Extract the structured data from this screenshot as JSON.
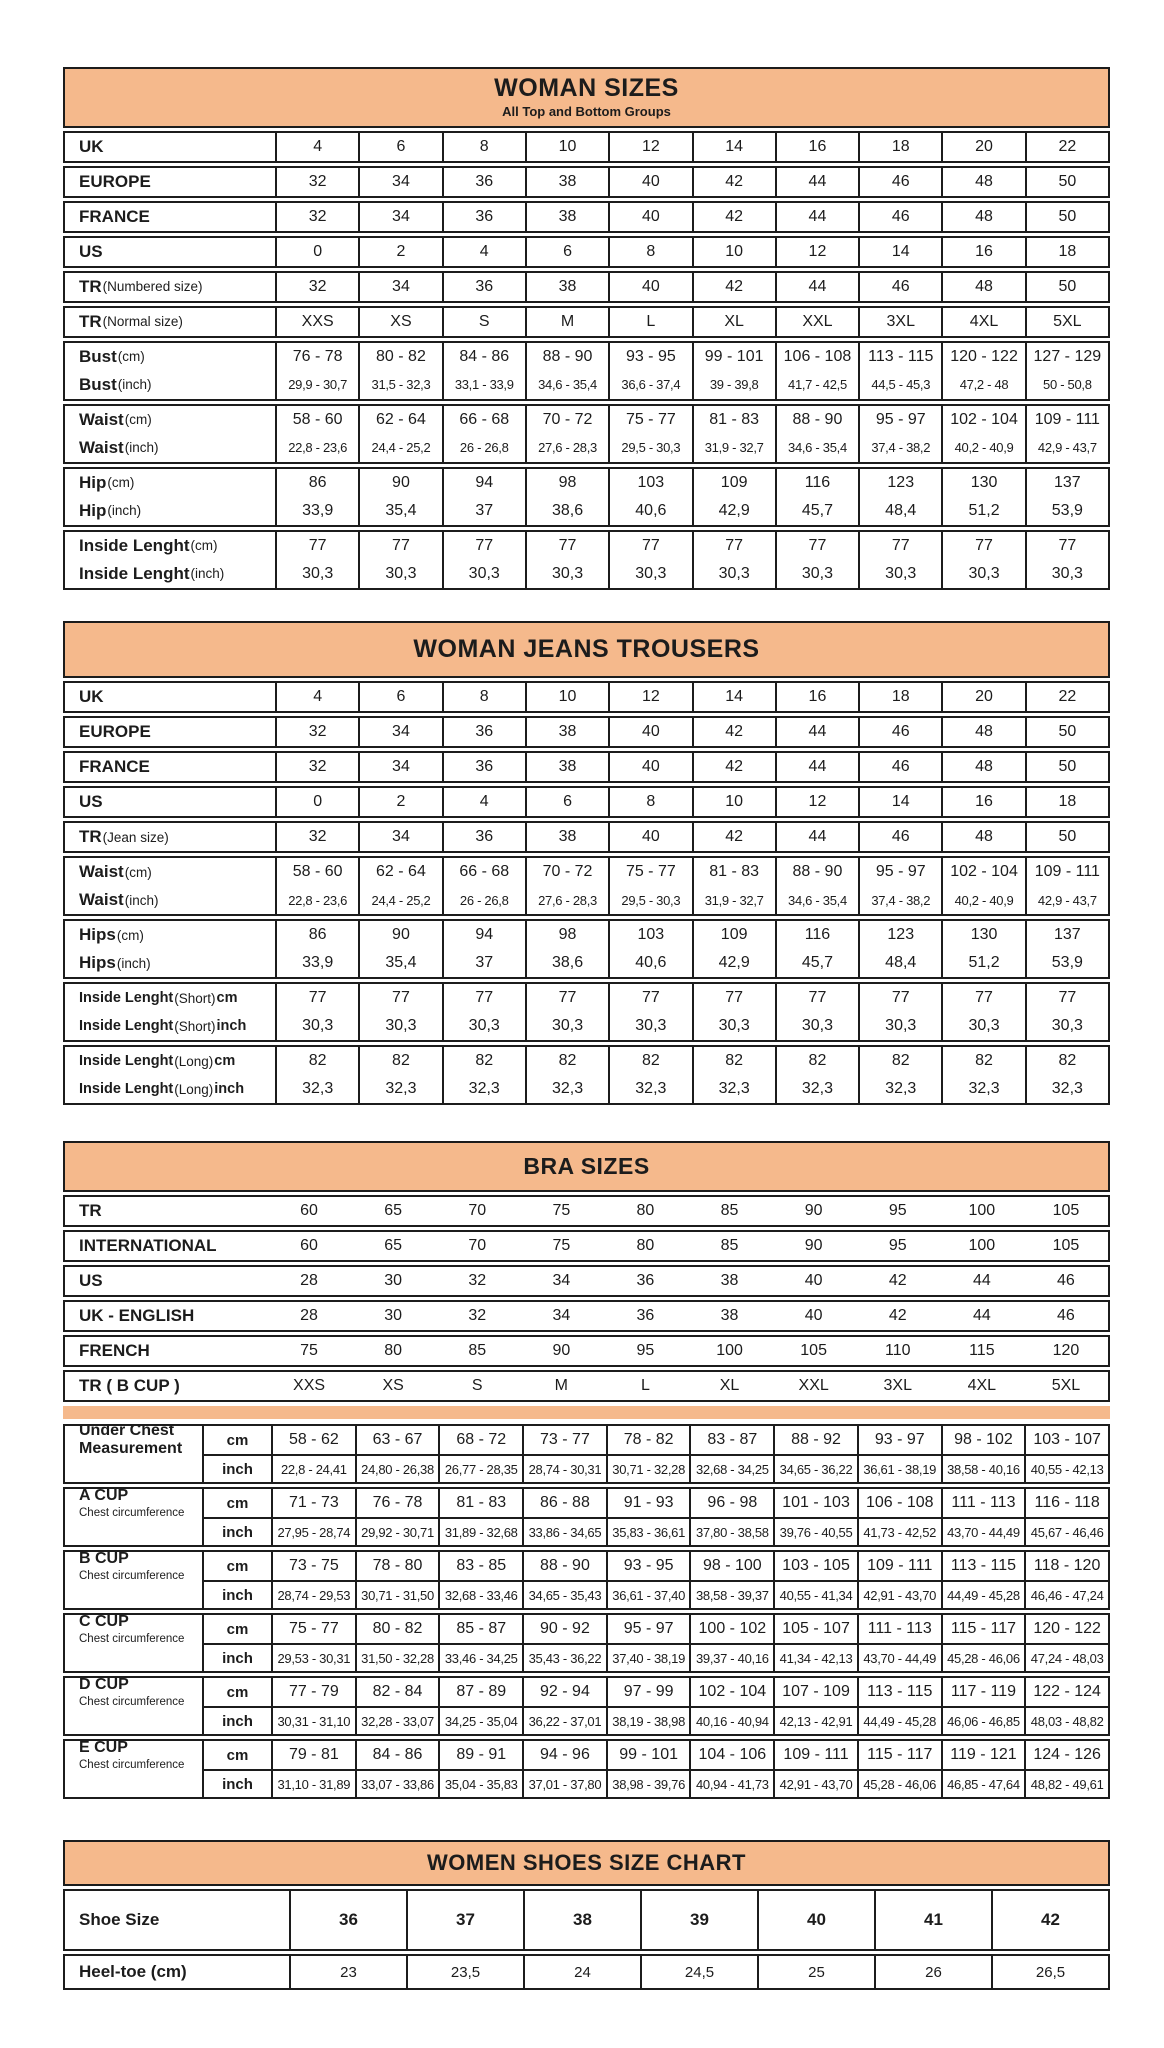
{
  "theme": {
    "header_bg": "#F5B98C",
    "border_color": "#1c1c1c",
    "text_color": "#1c1c1c"
  },
  "tables": [
    {
      "title": "WOMAN SIZES",
      "subtitle": "All Top and Bottom Groups",
      "groups": [
        {
          "rows": [
            {
              "label": "UK",
              "values": [
                "4",
                "6",
                "8",
                "10",
                "12",
                "14",
                "16",
                "18",
                "20",
                "22"
              ]
            }
          ]
        },
        {
          "rows": [
            {
              "label": "EUROPE",
              "values": [
                "32",
                "34",
                "36",
                "38",
                "40",
                "42",
                "44",
                "46",
                "48",
                "50"
              ]
            }
          ]
        },
        {
          "rows": [
            {
              "label": "FRANCE",
              "values": [
                "32",
                "34",
                "36",
                "38",
                "40",
                "42",
                "44",
                "46",
                "48",
                "50"
              ]
            }
          ]
        },
        {
          "rows": [
            {
              "label": "US",
              "values": [
                "0",
                "2",
                "4",
                "6",
                "8",
                "10",
                "12",
                "14",
                "16",
                "18"
              ]
            }
          ]
        },
        {
          "rows": [
            {
              "label": "TR (Numbered size)",
              "values": [
                "32",
                "34",
                "36",
                "38",
                "40",
                "42",
                "44",
                "46",
                "48",
                "50"
              ]
            }
          ]
        },
        {
          "rows": [
            {
              "label": "TR (Normal size)",
              "values": [
                "XXS",
                "XS",
                "S",
                "M",
                "L",
                "XL",
                "XXL",
                "3XL",
                "4XL",
                "5XL"
              ]
            }
          ]
        },
        {
          "rows": [
            {
              "label": "Bust (cm)",
              "values": [
                "76 - 78",
                "80 - 82",
                "84 - 86",
                "88 - 90",
                "93 - 95",
                "99 - 101",
                "106 - 108",
                "113 - 115",
                "120 - 122",
                "127 - 129"
              ]
            },
            {
              "label": "Bust (inch)",
              "small": true,
              "values": [
                "29,9 - 30,7",
                "31,5 - 32,3",
                "33,1 - 33,9",
                "34,6 - 35,4",
                "36,6 - 37,4",
                "39 - 39,8",
                "41,7 - 42,5",
                "44,5 - 45,3",
                "47,2 - 48",
                "50 - 50,8"
              ]
            }
          ]
        },
        {
          "rows": [
            {
              "label": "Waist (cm)",
              "values": [
                "58 - 60",
                "62 - 64",
                "66 - 68",
                "70 - 72",
                "75 - 77",
                "81 - 83",
                "88 - 90",
                "95 - 97",
                "102 - 104",
                "109 - 111"
              ]
            },
            {
              "label": "Waist (inch)",
              "small": true,
              "values": [
                "22,8 - 23,6",
                "24,4 - 25,2",
                "26 - 26,8",
                "27,6 - 28,3",
                "29,5 - 30,3",
                "31,9 - 32,7",
                "34,6 - 35,4",
                "37,4 - 38,2",
                "40,2 - 40,9",
                "42,9 - 43,7"
              ]
            }
          ]
        },
        {
          "rows": [
            {
              "label": "Hip (cm)",
              "values": [
                "86",
                "90",
                "94",
                "98",
                "103",
                "109",
                "116",
                "123",
                "130",
                "137"
              ]
            },
            {
              "label": "Hip (inch)",
              "values": [
                "33,9",
                "35,4",
                "37",
                "38,6",
                "40,6",
                "42,9",
                "45,7",
                "48,4",
                "51,2",
                "53,9"
              ]
            }
          ]
        },
        {
          "rows": [
            {
              "label": "Inside Lenght (cm)",
              "values": [
                "77",
                "77",
                "77",
                "77",
                "77",
                "77",
                "77",
                "77",
                "77",
                "77"
              ]
            },
            {
              "label": "Inside Lenght (inch)",
              "values": [
                "30,3",
                "30,3",
                "30,3",
                "30,3",
                "30,3",
                "30,3",
                "30,3",
                "30,3",
                "30,3",
                "30,3"
              ]
            }
          ]
        }
      ]
    },
    {
      "title": "WOMAN JEANS TROUSERS",
      "groups": [
        {
          "rows": [
            {
              "label": "UK",
              "values": [
                "4",
                "6",
                "8",
                "10",
                "12",
                "14",
                "16",
                "18",
                "20",
                "22"
              ]
            }
          ]
        },
        {
          "rows": [
            {
              "label": "EUROPE",
              "values": [
                "32",
                "34",
                "36",
                "38",
                "40",
                "42",
                "44",
                "46",
                "48",
                "50"
              ]
            }
          ]
        },
        {
          "rows": [
            {
              "label": "FRANCE",
              "values": [
                "32",
                "34",
                "36",
                "38",
                "40",
                "42",
                "44",
                "46",
                "48",
                "50"
              ]
            }
          ]
        },
        {
          "rows": [
            {
              "label": "US",
              "values": [
                "0",
                "2",
                "4",
                "6",
                "8",
                "10",
                "12",
                "14",
                "16",
                "18"
              ]
            }
          ]
        },
        {
          "rows": [
            {
              "label": "TR (Jean size)",
              "values": [
                "32",
                "34",
                "36",
                "38",
                "40",
                "42",
                "44",
                "46",
                "48",
                "50"
              ]
            }
          ]
        },
        {
          "rows": [
            {
              "label": "Waist (cm)",
              "values": [
                "58 - 60",
                "62 - 64",
                "66 - 68",
                "70 - 72",
                "75 - 77",
                "81 - 83",
                "88 - 90",
                "95 - 97",
                "102 - 104",
                "109 - 111"
              ]
            },
            {
              "label": "Waist (inch)",
              "small": true,
              "values": [
                "22,8 - 23,6",
                "24,4 - 25,2",
                "26 - 26,8",
                "27,6 - 28,3",
                "29,5 - 30,3",
                "31,9 - 32,7",
                "34,6 - 35,4",
                "37,4 - 38,2",
                "40,2 - 40,9",
                "42,9 - 43,7"
              ]
            }
          ]
        },
        {
          "rows": [
            {
              "label": "Hips (cm)",
              "values": [
                "86",
                "90",
                "94",
                "98",
                "103",
                "109",
                "116",
                "123",
                "130",
                "137"
              ]
            },
            {
              "label": "Hips (inch)",
              "values": [
                "33,9",
                "35,4",
                "37",
                "38,6",
                "40,6",
                "42,9",
                "45,7",
                "48,4",
                "51,2",
                "53,9"
              ]
            }
          ]
        },
        {
          "rows": [
            {
              "label": "Inside Lenght (Short) cm",
              "values": [
                "77",
                "77",
                "77",
                "77",
                "77",
                "77",
                "77",
                "77",
                "77",
                "77"
              ]
            },
            {
              "label": "Inside Lenght (Short) inch",
              "values": [
                "30,3",
                "30,3",
                "30,3",
                "30,3",
                "30,3",
                "30,3",
                "30,3",
                "30,3",
                "30,3",
                "30,3"
              ]
            }
          ]
        },
        {
          "rows": [
            {
              "label": "Inside Lenght (Long) cm",
              "values": [
                "82",
                "82",
                "82",
                "82",
                "82",
                "82",
                "82",
                "82",
                "82",
                "82"
              ]
            },
            {
              "label": "Inside Lenght (Long) inch",
              "values": [
                "32,3",
                "32,3",
                "32,3",
                "32,3",
                "32,3",
                "32,3",
                "32,3",
                "32,3",
                "32,3",
                "32,3"
              ]
            }
          ]
        }
      ]
    },
    {
      "title": "BRA SIZES",
      "groups": [
        {
          "rows": [
            {
              "label": "TR",
              "values": [
                "60",
                "65",
                "70",
                "75",
                "80",
                "85",
                "90",
                "95",
                "100",
                "105"
              ]
            }
          ]
        },
        {
          "rows": [
            {
              "label": "INTERNATIONAL",
              "values": [
                "60",
                "65",
                "70",
                "75",
                "80",
                "85",
                "90",
                "95",
                "100",
                "105"
              ]
            }
          ]
        },
        {
          "rows": [
            {
              "label": "US",
              "values": [
                "28",
                "30",
                "32",
                "34",
                "36",
                "38",
                "40",
                "42",
                "44",
                "46"
              ]
            }
          ]
        },
        {
          "rows": [
            {
              "label": "UK - ENGLISH",
              "values": [
                "28",
                "30",
                "32",
                "34",
                "36",
                "38",
                "40",
                "42",
                "44",
                "46"
              ]
            }
          ]
        },
        {
          "rows": [
            {
              "label": "FRENCH",
              "values": [
                "75",
                "80",
                "85",
                "90",
                "95",
                "100",
                "105",
                "110",
                "115",
                "120"
              ]
            }
          ]
        },
        {
          "rows": [
            {
              "label": "TR ( B CUP )",
              "values": [
                "XXS",
                "XS",
                "S",
                "M",
                "L",
                "XL",
                "XXL",
                "3XL",
                "4XL",
                "5XL"
              ]
            }
          ]
        }
      ]
    },
    {
      "title": null,
      "divider_strip": true,
      "groups": [
        {
          "label": "Under Chest Measurement",
          "rows": [
            {
              "unit": "cm",
              "values": [
                "58 - 62",
                "63 - 67",
                "68 - 72",
                "73 - 77",
                "78 - 82",
                "83 - 87",
                "88 - 92",
                "93 - 97",
                "98 - 102",
                "103 - 107"
              ]
            },
            {
              "unit": "inch",
              "small": true,
              "values": [
                "22,8 - 24,41",
                "24,80 - 26,38",
                "26,77 - 28,35",
                "28,74 - 30,31",
                "30,71 - 32,28",
                "32,68 - 34,25",
                "34,65 - 36,22",
                "36,61 - 38,19",
                "38,58 - 40,16",
                "40,55 - 42,13"
              ]
            }
          ]
        },
        {
          "label": "A CUP",
          "sublabel": "Chest circumference",
          "rows": [
            {
              "unit": "cm",
              "values": [
                "71 - 73",
                "76 - 78",
                "81 - 83",
                "86 - 88",
                "91 - 93",
                "96 - 98",
                "101 - 103",
                "106 - 108",
                "111 - 113",
                "116 - 118"
              ]
            },
            {
              "unit": "inch",
              "small": true,
              "values": [
                "27,95 - 28,74",
                "29,92 - 30,71",
                "31,89 - 32,68",
                "33,86 - 34,65",
                "35,83 - 36,61",
                "37,80 - 38,58",
                "39,76 - 40,55",
                "41,73 - 42,52",
                "43,70 - 44,49",
                "45,67 - 46,46"
              ]
            }
          ]
        },
        {
          "label": "B CUP",
          "sublabel": "Chest circumference",
          "rows": [
            {
              "unit": "cm",
              "values": [
                "73 - 75",
                "78 - 80",
                "83 - 85",
                "88 - 90",
                "93 - 95",
                "98 - 100",
                "103 - 105",
                "109 - 111",
                "113 - 115",
                "118 - 120"
              ]
            },
            {
              "unit": "inch",
              "small": true,
              "values": [
                "28,74 - 29,53",
                "30,71 - 31,50",
                "32,68 - 33,46",
                "34,65 - 35,43",
                "36,61 - 37,40",
                "38,58 - 39,37",
                "40,55 - 41,34",
                "42,91 - 43,70",
                "44,49 - 45,28",
                "46,46 - 47,24"
              ]
            }
          ]
        },
        {
          "label": "C CUP",
          "sublabel": "Chest circumference",
          "rows": [
            {
              "unit": "cm",
              "values": [
                "75 - 77",
                "80 - 82",
                "85 - 87",
                "90 - 92",
                "95 - 97",
                "100 - 102",
                "105 - 107",
                "111 - 113",
                "115 - 117",
                "120 - 122"
              ]
            },
            {
              "unit": "inch",
              "small": true,
              "values": [
                "29,53 - 30,31",
                "31,50 - 32,28",
                "33,46 - 34,25",
                "35,43 - 36,22",
                "37,40 - 38,19",
                "39,37 - 40,16",
                "41,34 - 42,13",
                "43,70 - 44,49",
                "45,28 - 46,06",
                "47,24 - 48,03"
              ]
            }
          ]
        },
        {
          "label": "D CUP",
          "sublabel": "Chest circumference",
          "rows": [
            {
              "unit": "cm",
              "values": [
                "77 - 79",
                "82 - 84",
                "87 - 89",
                "92 - 94",
                "97 - 99",
                "102 - 104",
                "107 - 109",
                "113 - 115",
                "117 - 119",
                "122 - 124"
              ]
            },
            {
              "unit": "inch",
              "small": true,
              "values": [
                "30,31 - 31,10",
                "32,28 - 33,07",
                "34,25 - 35,04",
                "36,22 - 37,01",
                "38,19 - 38,98",
                "40,16 - 40,94",
                "42,13 - 42,91",
                "44,49 - 45,28",
                "46,06 - 46,85",
                "48,03 - 48,82"
              ]
            }
          ]
        },
        {
          "label": "E CUP",
          "sublabel": "Chest circumference",
          "rows": [
            {
              "unit": "cm",
              "values": [
                "79 - 81",
                "84 - 86",
                "89 - 91",
                "94 - 96",
                "99 - 101",
                "104 - 106",
                "109 - 111",
                "115 - 117",
                "119 - 121",
                "124 - 126"
              ]
            },
            {
              "unit": "inch",
              "small": true,
              "values": [
                "31,10 - 31,89",
                "33,07 - 33,86",
                "35,04 - 35,83",
                "37,01 - 37,80",
                "38,98 - 39,76",
                "40,94 - 41,73",
                "42,91 - 43,70",
                "45,28 - 46,06",
                "46,85 - 47,64",
                "48,82 - 49,61"
              ]
            }
          ]
        }
      ]
    },
    {
      "title": "WOMEN SHOES SIZE CHART",
      "groups": [
        {
          "rows": [
            {
              "label": "Shoe Size",
              "bold": true,
              "values": [
                "36",
                "37",
                "38",
                "39",
                "40",
                "41",
                "42"
              ]
            }
          ]
        },
        {
          "rows": [
            {
              "label": "Heel-toe (cm)",
              "values": [
                "23",
                "23,5",
                "24",
                "24,5",
                "25",
                "26",
                "26,5"
              ]
            }
          ]
        }
      ]
    }
  ]
}
